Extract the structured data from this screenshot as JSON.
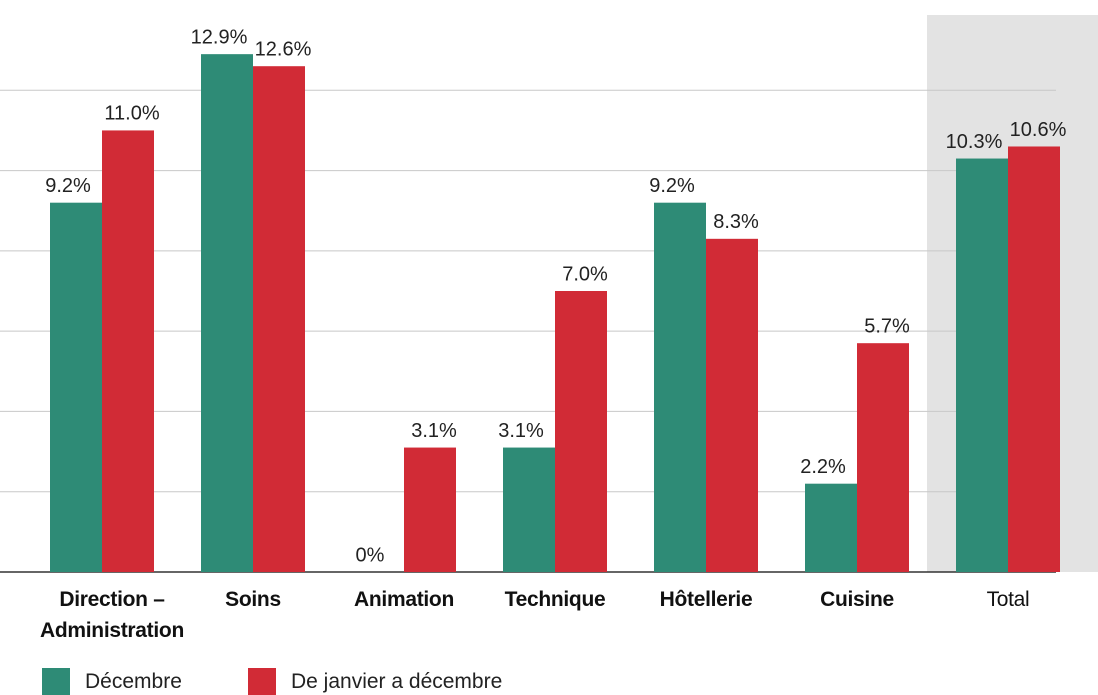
{
  "chart_data": {
    "type": "bar",
    "categories": [
      "Direction – Administration",
      "Soins",
      "Animation",
      "Technique",
      "Hôtellerie",
      "Cuisine",
      "Total"
    ],
    "series": [
      {
        "name": "Décembre",
        "color": "#2e8b76",
        "values": [
          9.2,
          12.9,
          0,
          3.1,
          9.2,
          2.2,
          10.3
        ],
        "value_labels": [
          "9.2%",
          "12.9%",
          "0%",
          "3.1%",
          "9.2%",
          "2.2%",
          "10.3%"
        ]
      },
      {
        "name": "De janvier a décembre",
        "color": "#d12b36",
        "values": [
          11.0,
          12.6,
          3.1,
          7.0,
          8.3,
          5.7,
          10.6
        ],
        "value_labels": [
          "11.0%",
          "12.6%",
          "3.1%",
          "7.0%",
          "8.3%",
          "5.7%",
          "10.6%"
        ]
      }
    ],
    "ylim": [
      0,
      14
    ],
    "yticks": [
      0,
      2,
      4,
      6,
      8,
      10,
      12
    ],
    "grid": true,
    "highlight_category": 6,
    "legend": "bottom-left"
  }
}
